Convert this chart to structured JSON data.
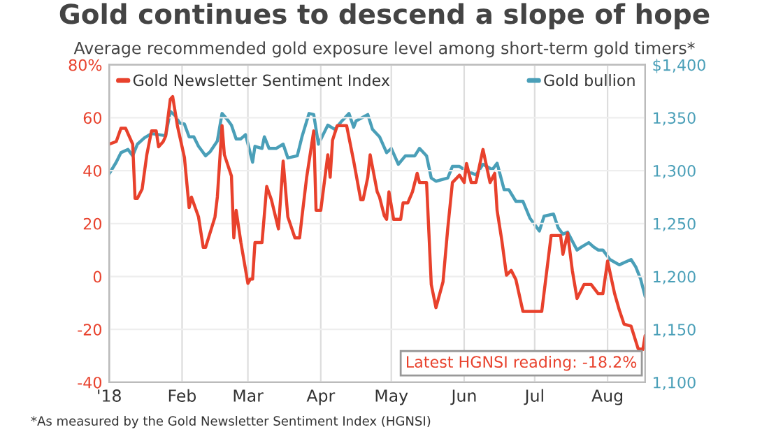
{
  "chart_data": {
    "type": "line",
    "title": "Gold continues to descend a slope of hope",
    "subtitle": "Average recommended gold exposure level among short-term gold timers*",
    "xlim": [
      "2018-01-01",
      "2018-08-17"
    ],
    "xticks": [
      {
        "value": "2018-01-01",
        "label": "'18"
      },
      {
        "value": "2018-02-01",
        "label": "Feb"
      },
      {
        "value": "2018-03-01",
        "label": "Mar"
      },
      {
        "value": "2018-04-01",
        "label": "Apr"
      },
      {
        "value": "2018-05-01",
        "label": "May"
      },
      {
        "value": "2018-06-01",
        "label": "Jun"
      },
      {
        "value": "2018-07-01",
        "label": "Jul"
      },
      {
        "value": "2018-08-01",
        "label": "Aug"
      }
    ],
    "ylim": [
      -40,
      80
    ],
    "yticks": [
      -40,
      -20,
      0,
      20,
      40,
      60,
      {
        "value": 80,
        "label": "80%"
      }
    ],
    "y2lim": [
      1100,
      1400
    ],
    "y2ticks": [
      {
        "value": 1100,
        "label": "1,100"
      },
      {
        "value": 1150,
        "label": "1,150"
      },
      {
        "value": 1200,
        "label": "1,200"
      },
      {
        "value": 1250,
        "label": "1,250"
      },
      {
        "value": 1300,
        "label": "1,300"
      },
      {
        "value": 1350,
        "label": "1,350"
      },
      {
        "value": 1400,
        "label": "$1,400"
      }
    ],
    "grid": true,
    "legend": "top",
    "marker": "none",
    "line_style": "solid",
    "annotations": [
      "Latest HGNSI reading: -18.2%",
      "*As measured by the Gold Newsletter Sentiment Index (HGNSI)"
    ],
    "series": [
      {
        "name": "Gold Newsletter Sentiment Index",
        "color": "#e8412c",
        "axis": "y",
        "x": [
          "2018-01-01",
          "2018-01-04",
          "2018-01-06",
          "2018-01-08",
          "2018-01-11",
          "2018-01-12",
          "2018-01-13",
          "2018-01-15",
          "2018-01-17",
          "2018-01-19",
          "2018-01-21",
          "2018-01-22",
          "2018-01-24",
          "2018-01-25",
          "2018-01-27",
          "2018-01-28",
          "2018-01-30",
          "2018-02-02",
          "2018-02-04",
          "2018-02-05",
          "2018-02-08",
          "2018-02-10",
          "2018-02-11",
          "2018-02-15",
          "2018-02-16",
          "2018-02-18",
          "2018-02-19",
          "2018-02-22",
          "2018-02-23",
          "2018-02-24",
          "2018-02-26",
          "2018-03-01",
          "2018-03-02",
          "2018-03-03",
          "2018-03-04",
          "2018-03-07",
          "2018-03-09",
          "2018-03-11",
          "2018-03-14",
          "2018-03-16",
          "2018-03-18",
          "2018-03-21",
          "2018-03-23",
          "2018-03-24",
          "2018-03-26",
          "2018-03-29",
          "2018-03-30",
          "2018-04-01",
          "2018-04-04",
          "2018-04-05",
          "2018-04-06",
          "2018-04-08",
          "2018-04-12",
          "2018-04-15",
          "2018-04-18",
          "2018-04-19",
          "2018-04-21",
          "2018-04-22",
          "2018-04-25",
          "2018-04-26",
          "2018-04-28",
          "2018-04-29",
          "2018-04-30",
          "2018-05-02",
          "2018-05-05",
          "2018-05-06",
          "2018-05-08",
          "2018-05-10",
          "2018-05-12",
          "2018-05-13",
          "2018-05-16",
          "2018-05-17",
          "2018-05-18",
          "2018-05-20",
          "2018-05-23",
          "2018-05-25",
          "2018-05-27",
          "2018-05-30",
          "2018-06-01",
          "2018-06-02",
          "2018-06-04",
          "2018-06-06",
          "2018-06-09",
          "2018-06-12",
          "2018-06-14",
          "2018-06-15",
          "2018-06-17",
          "2018-06-19",
          "2018-06-21",
          "2018-06-23",
          "2018-06-26",
          "2018-06-29",
          "2018-07-04",
          "2018-07-08",
          "2018-07-12",
          "2018-07-13",
          "2018-07-15",
          "2018-07-17",
          "2018-07-19",
          "2018-07-22",
          "2018-07-25",
          "2018-07-28",
          "2018-07-30",
          "2018-08-01",
          "2018-08-04",
          "2018-08-06",
          "2018-08-08",
          "2018-08-11",
          "2018-08-14",
          "2018-08-16",
          "2018-08-17"
        ],
        "values": [
          50,
          51,
          56,
          56,
          50,
          29.5,
          29.5,
          33,
          46,
          55,
          55,
          49,
          51,
          53,
          67,
          68,
          57,
          45,
          26,
          30,
          22.5,
          11,
          11,
          22.5,
          30,
          57,
          46,
          38,
          14.6,
          25,
          13,
          -2.6,
          -1,
          -1,
          12.8,
          12.8,
          34,
          29,
          18,
          43.6,
          22.5,
          14.6,
          14.6,
          22.5,
          37.5,
          55,
          25,
          25,
          46,
          37.5,
          51.5,
          57,
          57,
          43.6,
          29,
          29,
          37.5,
          46,
          32,
          30,
          23,
          21.6,
          32,
          21.6,
          21.6,
          27.8,
          27.8,
          32,
          39,
          35.5,
          35.5,
          16.4,
          -3,
          -11.8,
          -2,
          18,
          35.5,
          38.3,
          35.5,
          42.7,
          35.5,
          35.5,
          48,
          35.5,
          39,
          25,
          13.7,
          0.5,
          2.3,
          -1.2,
          -13.2,
          -13.2,
          -13.2,
          15.5,
          15.5,
          8.4,
          16.4,
          2.3,
          -8.3,
          -3,
          -3,
          -6.5,
          -6.5,
          5.8,
          -6.5,
          -12.7,
          -18,
          -18.8,
          -27.3,
          -27.6,
          -22.3
        ]
      },
      {
        "name": "Gold bullion",
        "color": "#4a9fb8",
        "axis": "y2",
        "x": [
          "2018-01-01",
          "2018-01-04",
          "2018-01-06",
          "2018-01-09",
          "2018-01-11",
          "2018-01-13",
          "2018-01-16",
          "2018-01-19",
          "2018-01-22",
          "2018-01-25",
          "2018-01-27",
          "2018-01-29",
          "2018-01-31",
          "2018-02-02",
          "2018-02-04",
          "2018-02-06",
          "2018-02-08",
          "2018-02-11",
          "2018-02-13",
          "2018-02-16",
          "2018-02-18",
          "2018-02-20",
          "2018-02-22",
          "2018-02-24",
          "2018-02-26",
          "2018-02-28",
          "2018-03-03",
          "2018-03-04",
          "2018-03-07",
          "2018-03-08",
          "2018-03-10",
          "2018-03-13",
          "2018-03-16",
          "2018-03-18",
          "2018-03-22",
          "2018-03-24",
          "2018-03-27",
          "2018-03-29",
          "2018-03-31",
          "2018-04-02",
          "2018-04-04",
          "2018-04-07",
          "2018-04-10",
          "2018-04-13",
          "2018-04-15",
          "2018-04-16",
          "2018-04-21",
          "2018-04-23",
          "2018-04-26",
          "2018-04-29",
          "2018-05-01",
          "2018-05-04",
          "2018-05-07",
          "2018-05-11",
          "2018-05-13",
          "2018-05-16",
          "2018-05-18",
          "2018-05-20",
          "2018-05-25",
          "2018-05-27",
          "2018-05-30",
          "2018-06-01",
          "2018-06-04",
          "2018-06-06",
          "2018-06-09",
          "2018-06-13",
          "2018-06-15",
          "2018-06-18",
          "2018-06-20",
          "2018-06-23",
          "2018-06-26",
          "2018-06-29",
          "2018-07-03",
          "2018-07-05",
          "2018-07-09",
          "2018-07-11",
          "2018-07-13",
          "2018-07-15",
          "2018-07-19",
          "2018-07-21",
          "2018-07-24",
          "2018-07-26",
          "2018-07-28",
          "2018-07-30",
          "2018-08-02",
          "2018-08-06",
          "2018-08-08",
          "2018-08-11",
          "2018-08-13",
          "2018-08-15",
          "2018-08-17"
        ],
        "values": [
          1297,
          1308,
          1317,
          1320,
          1314,
          1325,
          1331,
          1335,
          1334,
          1333,
          1356,
          1352,
          1345,
          1344,
          1332,
          1332,
          1323,
          1314,
          1318,
          1328,
          1354,
          1349,
          1343,
          1330,
          1330,
          1334,
          1308,
          1323,
          1321,
          1332,
          1321,
          1321,
          1325,
          1312,
          1314,
          1332,
          1354,
          1353,
          1325,
          1334,
          1343,
          1339,
          1347,
          1354,
          1341,
          1347,
          1353,
          1339,
          1332,
          1317,
          1321,
          1306,
          1314,
          1314,
          1321,
          1314,
          1293,
          1290,
          1293,
          1304,
          1304,
          1301,
          1298,
          1296,
          1306,
          1301,
          1307,
          1282,
          1282,
          1271,
          1271,
          1255,
          1243,
          1257,
          1259,
          1246,
          1240,
          1242,
          1225,
          1228,
          1232,
          1228,
          1225,
          1225,
          1216,
          1211,
          1213,
          1216,
          1209,
          1198,
          1181
        ]
      }
    ]
  }
}
